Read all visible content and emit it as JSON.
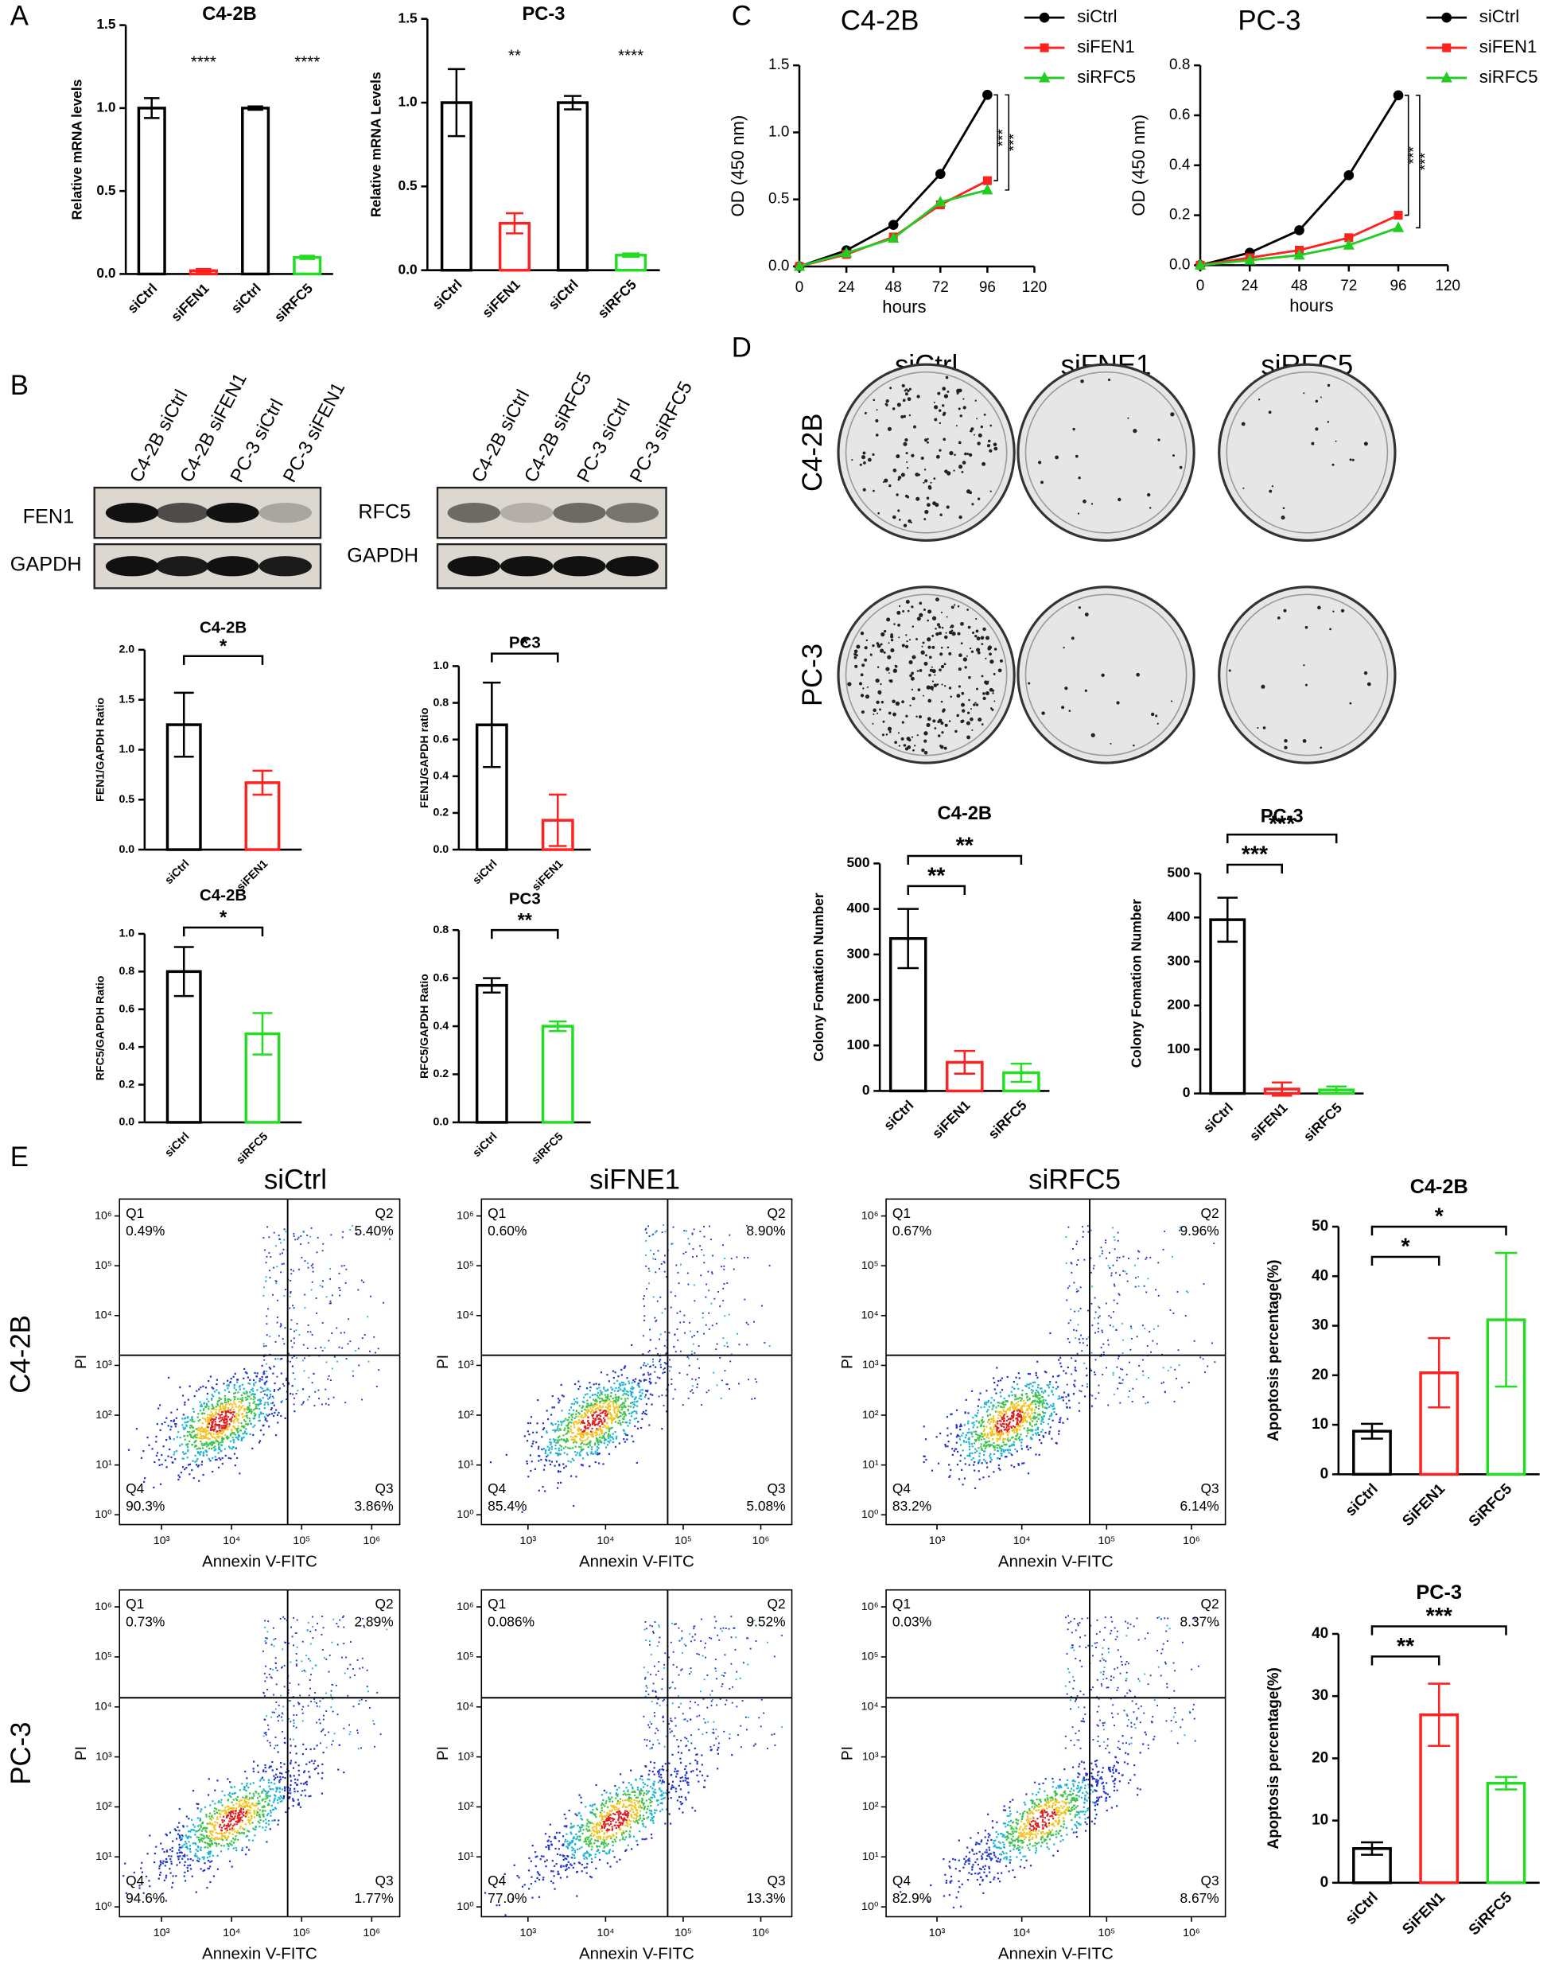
{
  "panel_labels": [
    "A",
    "B",
    "C",
    "D",
    "E"
  ],
  "chart_data": [
    {
      "type": "bar",
      "title": "C4-2B",
      "ylabel": "Relative mRNA levels",
      "categories": [
        "siCtrl",
        "siFEN1",
        "siCtrl",
        "siRFC5"
      ],
      "values": [
        1.0,
        0.02,
        1.0,
        0.1
      ],
      "errors": [
        0.06,
        0.01,
        0.01,
        0.01
      ],
      "colors": [
        "#000000",
        "#ff2020",
        "#000000",
        "#22dd22"
      ],
      "ylim": [
        0,
        1.5
      ],
      "yticks": [
        {
          "value": 0,
          "label": "0.0"
        },
        {
          "value": 0.5,
          "label": "0.5"
        },
        {
          "value": 1,
          "label": "1.0"
        },
        {
          "value": 1.5,
          "label": "1.5"
        }
      ],
      "annotations": [
        {
          "text": "****",
          "over": 1
        },
        {
          "text": "****",
          "over": 3
        }
      ]
    },
    {
      "type": "bar",
      "title": "PC-3",
      "ylabel": "Relative mRNA Levels",
      "categories": [
        "siCtrl",
        "siFEN1",
        "siCtrl",
        "siRFC5"
      ],
      "values": [
        1.0,
        0.28,
        1.0,
        0.09
      ],
      "errors": [
        0.2,
        0.06,
        0.04,
        0.01
      ],
      "colors": [
        "#000000",
        "#ff2020",
        "#000000",
        "#22dd22"
      ],
      "ylim": [
        0,
        1.5
      ],
      "yticks": [
        {
          "value": 0,
          "label": "0.0"
        },
        {
          "value": 0.5,
          "label": "0.5"
        },
        {
          "value": 1,
          "label": "1.0"
        },
        {
          "value": 1.5,
          "label": "1.5"
        }
      ],
      "annotations": [
        {
          "text": "**",
          "over": 1
        },
        {
          "text": "****",
          "over": 3
        }
      ]
    },
    {
      "type": "line",
      "title": "C4-2B",
      "xlabel": "hours",
      "ylabel": "OD (450 nm)",
      "x": [
        0,
        24,
        48,
        72,
        96
      ],
      "series": [
        {
          "name": "siCtrl",
          "color": "#000000",
          "marker": "circle",
          "values": [
            0,
            0.12,
            0.31,
            0.69,
            1.28
          ]
        },
        {
          "name": "siFEN1",
          "color": "#ff2020",
          "marker": "square",
          "values": [
            0,
            0.09,
            0.22,
            0.46,
            0.64
          ]
        },
        {
          "name": "siRFC5",
          "color": "#22cc22",
          "marker": "triangle",
          "values": [
            0,
            0.1,
            0.21,
            0.48,
            0.57
          ]
        }
      ],
      "xlim": [
        0,
        120
      ],
      "xticks": [
        0,
        24,
        48,
        72,
        96,
        120
      ],
      "ylim": [
        0,
        1.5
      ],
      "yticks": [
        {
          "value": 0,
          "label": "0.0"
        },
        {
          "value": 0.5,
          "label": "0.5"
        },
        {
          "value": 1,
          "label": "1.0"
        },
        {
          "value": 1.5,
          "label": "1.5"
        }
      ],
      "annotations": [
        {
          "text": "***",
          "between": [
            0,
            1
          ]
        },
        {
          "text": "***",
          "between": [
            0,
            2
          ]
        }
      ]
    },
    {
      "type": "line",
      "title": "PC-3",
      "xlabel": "hours",
      "ylabel": "OD (450 nm)",
      "x": [
        0,
        24,
        48,
        72,
        96
      ],
      "series": [
        {
          "name": "siCtrl",
          "color": "#000000",
          "marker": "circle",
          "values": [
            0,
            0.05,
            0.14,
            0.36,
            0.68
          ]
        },
        {
          "name": "siFEN1",
          "color": "#ff2020",
          "marker": "square",
          "values": [
            0,
            0.03,
            0.06,
            0.11,
            0.2
          ]
        },
        {
          "name": "siRFC5",
          "color": "#22cc22",
          "marker": "triangle",
          "values": [
            0,
            0.02,
            0.04,
            0.08,
            0.15
          ]
        }
      ],
      "xlim": [
        0,
        120
      ],
      "xticks": [
        0,
        24,
        48,
        72,
        96,
        120
      ],
      "ylim": [
        0,
        0.8
      ],
      "yticks": [
        {
          "value": 0,
          "label": "0.0"
        },
        {
          "value": 0.2,
          "label": "0.2"
        },
        {
          "value": 0.4,
          "label": "0.4"
        },
        {
          "value": 0.6,
          "label": "0.6"
        },
        {
          "value": 0.8,
          "label": "0.8"
        }
      ],
      "annotations": [
        {
          "text": "***",
          "between": [
            0,
            1
          ]
        },
        {
          "text": "***",
          "between": [
            0,
            2
          ]
        }
      ]
    },
    {
      "type": "bar",
      "title": "C4-2B",
      "ylabel": "FEN1/GAPDH Ratio",
      "categories": [
        "siCtrl",
        "siFEN1"
      ],
      "values": [
        1.25,
        0.67
      ],
      "errors": [
        0.32,
        0.12
      ],
      "colors": [
        "#000000",
        "#ff2020"
      ],
      "ylim": [
        0,
        2
      ],
      "yticks": [
        {
          "value": 0,
          "label": "0.0"
        },
        {
          "value": 0.5,
          "label": "0.5"
        },
        {
          "value": 1,
          "label": "1.0"
        },
        {
          "value": 1.5,
          "label": "1.5"
        },
        {
          "value": 2,
          "label": "2.0"
        }
      ],
      "annotations": [
        {
          "text": "*",
          "between": [
            0,
            1
          ]
        }
      ]
    },
    {
      "type": "bar",
      "title": "PC3",
      "ylabel": "FEN1/GAPDH ratio",
      "categories": [
        "siCtrl",
        "siFEN1"
      ],
      "values": [
        0.68,
        0.16
      ],
      "errors": [
        0.23,
        0.14
      ],
      "colors": [
        "#000000",
        "#ff2020"
      ],
      "ylim": [
        0,
        1
      ],
      "yticks": [
        {
          "value": 0,
          "label": "0.0"
        },
        0.2,
        0.4,
        0.6,
        0.8,
        {
          "value": 1,
          "label": "1.0"
        }
      ],
      "annotations": [
        {
          "text": "*",
          "between": [
            0,
            1
          ]
        }
      ]
    },
    {
      "type": "bar",
      "title": "C4-2B",
      "ylabel": "RFC5/GAPDH Ratio",
      "categories": [
        "siCtrl",
        "siRFC5"
      ],
      "values": [
        0.8,
        0.47
      ],
      "errors": [
        0.13,
        0.11
      ],
      "colors": [
        "#000000",
        "#22dd22"
      ],
      "ylim": [
        0,
        1
      ],
      "yticks": [
        {
          "value": 0,
          "label": "0.0"
        },
        0.2,
        0.4,
        0.6,
        0.8,
        {
          "value": 1,
          "label": "1.0"
        }
      ],
      "annotations": [
        {
          "text": "*",
          "between": [
            0,
            1
          ]
        }
      ]
    },
    {
      "type": "bar",
      "title": "PC3",
      "ylabel": "RFC5/GAPDH Ratio",
      "categories": [
        "siCtrl",
        "siRFC5"
      ],
      "values": [
        0.57,
        0.4
      ],
      "errors": [
        0.03,
        0.02
      ],
      "colors": [
        "#000000",
        "#22dd22"
      ],
      "ylim": [
        0,
        0.8
      ],
      "yticks": [
        {
          "value": 0,
          "label": "0.0"
        },
        0.2,
        0.4,
        0.6,
        0.8
      ],
      "annotations": [
        {
          "text": "**",
          "between": [
            0,
            1
          ]
        }
      ]
    },
    {
      "type": "bar",
      "title": "C4-2B",
      "ylabel": "Colony Fomation Number",
      "categories": [
        "siCtrl",
        "siFEN1",
        "siRFC5"
      ],
      "values": [
        335,
        63,
        40
      ],
      "errors": [
        65,
        25,
        20
      ],
      "colors": [
        "#000000",
        "#ff2020",
        "#22dd22"
      ],
      "ylim": [
        0,
        500
      ],
      "yticks": [
        0,
        100,
        200,
        300,
        400,
        500
      ],
      "annotations": [
        {
          "text": "**",
          "between": [
            0,
            1
          ]
        },
        {
          "text": "**",
          "between": [
            0,
            2
          ]
        }
      ]
    },
    {
      "type": "bar",
      "title": "PC-3",
      "ylabel": "Colony Fomation Number",
      "categories": [
        "siCtrl",
        "siFEN1",
        "siRFC5"
      ],
      "values": [
        395,
        10,
        8
      ],
      "errors": [
        50,
        15,
        8
      ],
      "colors": [
        "#000000",
        "#ff2020",
        "#22dd22"
      ],
      "ylim": [
        0,
        500
      ],
      "yticks": [
        0,
        100,
        200,
        300,
        400,
        500
      ],
      "annotations": [
        {
          "text": "***",
          "between": [
            0,
            1
          ]
        },
        {
          "text": "***",
          "between": [
            0,
            2
          ]
        }
      ]
    },
    {
      "type": "bar",
      "title": "C4-2B",
      "ylabel": "Apoptosis percentage(%)",
      "categories": [
        "siCtrl",
        "SiFEN1",
        "SiRFC5"
      ],
      "values": [
        8.7,
        20.5,
        31.2
      ],
      "errors": [
        1.5,
        7,
        13.5
      ],
      "colors": [
        "#000000",
        "#ff2020",
        "#22dd22"
      ],
      "ylim": [
        0,
        50
      ],
      "yticks": [
        0,
        10,
        20,
        30,
        40,
        50
      ],
      "annotations": [
        {
          "text": "*",
          "between": [
            0,
            1
          ]
        },
        {
          "text": "*",
          "between": [
            0,
            2
          ]
        }
      ]
    },
    {
      "type": "bar",
      "title": "PC-3",
      "ylabel": "Apoptosis percentage(%)",
      "categories": [
        "siCtrl",
        "SiFEN1",
        "SiRFC5"
      ],
      "values": [
        5.5,
        27,
        16
      ],
      "errors": [
        1,
        5,
        1
      ],
      "colors": [
        "#000000",
        "#ff2020",
        "#22dd22"
      ],
      "ylim": [
        0,
        40
      ],
      "yticks": [
        0,
        10,
        20,
        30,
        40
      ],
      "annotations": [
        {
          "text": "**",
          "between": [
            0,
            1
          ]
        },
        {
          "text": "***",
          "between": [
            0,
            2
          ]
        }
      ]
    }
  ],
  "blots": [
    {
      "lanes": [
        "C4-2B siCtrl",
        "C4-2B siFEN1",
        "PC-3 siCtrl",
        "PC-3 siFEN1"
      ],
      "rows": [
        "FEN1",
        "GAPDH"
      ]
    },
    {
      "lanes": [
        "C4-2B siCtrl",
        "C4-2B siRFC5",
        "PC-3 siCtrl",
        "PC-3 siRFC5"
      ],
      "rows": [
        "RFC5",
        "GAPDH"
      ]
    }
  ],
  "colony": {
    "columns": [
      "siCtrl",
      "siFNE1",
      "siRFC5"
    ],
    "rows": [
      "C4-2B",
      "PC-3"
    ]
  },
  "flow": {
    "columns": [
      "siCtrl",
      "siFNE1",
      "siRFC5"
    ],
    "rows": [
      "C4-2B",
      "PC-3"
    ],
    "xlabel": "Annexin V-FITC",
    "ylabel": "PI",
    "xticks": [
      "10³",
      "10⁴",
      "10⁵",
      "10⁶"
    ],
    "yticks": [
      "10⁰",
      "10¹",
      "10²",
      "10³",
      "10⁴",
      "10⁵",
      "10⁶"
    ],
    "quadrants": [
      "Q1",
      "Q2",
      "Q3",
      "Q4"
    ],
    "plots": [
      [
        [
          "0.49%",
          "5.40%",
          "3.86%",
          "90.3%"
        ],
        [
          "0.60%",
          "8.90%",
          "5.08%",
          "85.4%"
        ],
        [
          "0.67%",
          "9.96%",
          "6.14%",
          "83.2%"
        ]
      ],
      [
        [
          "0.73%",
          "2.89%",
          "1.77%",
          "94.6%"
        ],
        [
          "0.086%",
          "9.52%",
          "13.3%",
          "77.0%"
        ],
        [
          "0.03%",
          "8.37%",
          "8.67%",
          "82.9%"
        ]
      ]
    ]
  }
}
